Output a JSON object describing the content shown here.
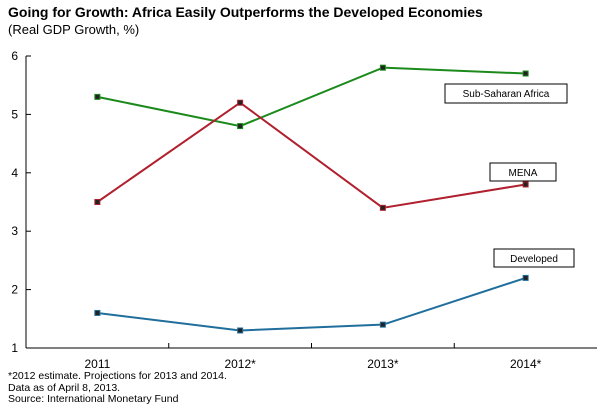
{
  "chart_data": {
    "type": "line",
    "title": "Going for Growth: Africa Easily Outperforms the Developed Economies",
    "subtitle": "(Real GDP Growth, %)",
    "categories": [
      "2011",
      "2012*",
      "2013*",
      "2014*"
    ],
    "series": [
      {
        "name": "Sub-Saharan Africa",
        "values": [
          5.3,
          4.8,
          5.8,
          5.7
        ],
        "color": "#1b8a1b"
      },
      {
        "name": "MENA",
        "values": [
          3.5,
          5.2,
          3.4,
          3.8
        ],
        "color": "#b0202e"
      },
      {
        "name": "Developed",
        "values": [
          1.6,
          1.3,
          1.4,
          2.2
        ],
        "color": "#1f6e9c"
      }
    ],
    "ylim": [
      1,
      6
    ],
    "yticks": [
      "1",
      "2",
      "3",
      "4",
      "5",
      "6"
    ],
    "grid": false,
    "legend": "callout labels beside each series"
  },
  "notes": [
    "*2012 estimate. Projections for 2013 and 2014.",
    "Data as of April 8, 2013.",
    "Source: International Monetary Fund"
  ]
}
